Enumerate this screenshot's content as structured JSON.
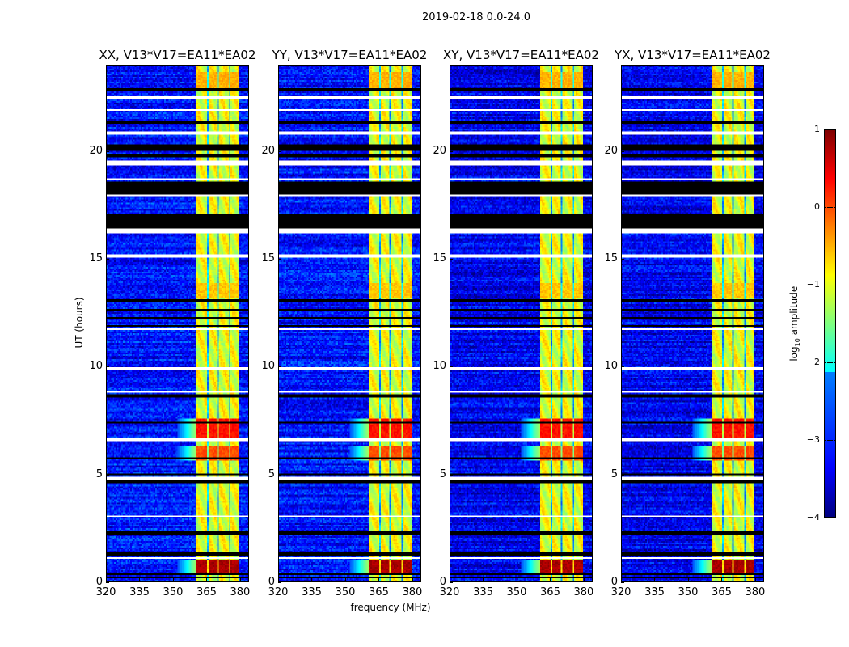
{
  "chart_data": {
    "type": "heatmap",
    "suptitle": "2019-02-18 0.0-24.0",
    "xlabel": "frequency (MHz)",
    "ylabel": "UT (hours)",
    "xlim": [
      320,
      384
    ],
    "ylim": [
      0,
      24
    ],
    "xticks": [
      "320",
      "335",
      "350",
      "365",
      "380"
    ],
    "xtick_values": [
      320,
      335,
      350,
      365,
      380
    ],
    "yticks": [
      "0",
      "5",
      "10",
      "15",
      "20"
    ],
    "ytick_values": [
      0,
      5,
      10,
      15,
      20
    ],
    "colormap": "jet",
    "colorbar": {
      "label_prefix": "log",
      "label_sub": "10",
      "label_suffix": " amplitude",
      "range": [
        -4,
        1
      ],
      "ticks": [
        "1",
        "0",
        "−1",
        "−2",
        "−3",
        "−4"
      ],
      "tick_values": [
        1,
        0,
        -1,
        -2,
        -3,
        -4
      ]
    },
    "panels": [
      {
        "title": "XX, V13*V17=EA11*EA02",
        "seed": 11
      },
      {
        "title": "YY, V13*V17=EA11*EA02",
        "seed": 23
      },
      {
        "title": "XY, V13*V17=EA11*EA02",
        "seed": 37
      },
      {
        "title": "YX, V13*V17=EA11*EA02",
        "seed": 51
      }
    ],
    "background_level": -3.3,
    "rfi_band_mhz": [
      361,
      380
    ],
    "rfi_channel_gaps_mhz": [
      365.5,
      370.5,
      375.5
    ],
    "rfi_level": -1.0,
    "strong_rfi_periods_ut": [
      [
        0.4,
        1.0,
        0.8
      ],
      [
        5.6,
        6.3,
        0.0
      ],
      [
        6.7,
        7.6,
        0.3
      ],
      [
        13.2,
        13.9,
        -0.6
      ],
      [
        22.9,
        23.7,
        -0.5
      ]
    ],
    "flagged_black_ut": [
      [
        22.8,
        22.95
      ],
      [
        21.3,
        21.45
      ],
      [
        20.05,
        20.3
      ],
      [
        19.75,
        19.85
      ],
      [
        18.0,
        18.6
      ],
      [
        16.4,
        17.1
      ],
      [
        12.2,
        12.3
      ],
      [
        12.6,
        12.7
      ],
      [
        13.0,
        13.1
      ],
      [
        11.85,
        11.95
      ],
      [
        8.55,
        8.7
      ],
      [
        7.35,
        7.45
      ],
      [
        5.7,
        5.8
      ],
      [
        4.95,
        5.05
      ],
      [
        4.6,
        4.7
      ],
      [
        2.2,
        2.3
      ],
      [
        1.2,
        1.35
      ],
      [
        0.12,
        0.2
      ],
      [
        0.28,
        0.34
      ]
    ],
    "gap_white_ut": [
      [
        22.45,
        22.6
      ],
      [
        21.9,
        21.95
      ],
      [
        20.75,
        20.9
      ],
      [
        19.35,
        19.55
      ],
      [
        18.65,
        18.75
      ],
      [
        17.9,
        18.0
      ],
      [
        16.2,
        16.4
      ],
      [
        15.1,
        15.2
      ],
      [
        14.3,
        14.35
      ],
      [
        11.7,
        11.8
      ],
      [
        9.85,
        9.95
      ],
      [
        9.5,
        9.55
      ],
      [
        8.75,
        8.82
      ],
      [
        6.5,
        6.65
      ],
      [
        4.72,
        4.88
      ],
      [
        3.0,
        3.05
      ],
      [
        2.0,
        2.05
      ],
      [
        1.05,
        1.1
      ]
    ]
  }
}
